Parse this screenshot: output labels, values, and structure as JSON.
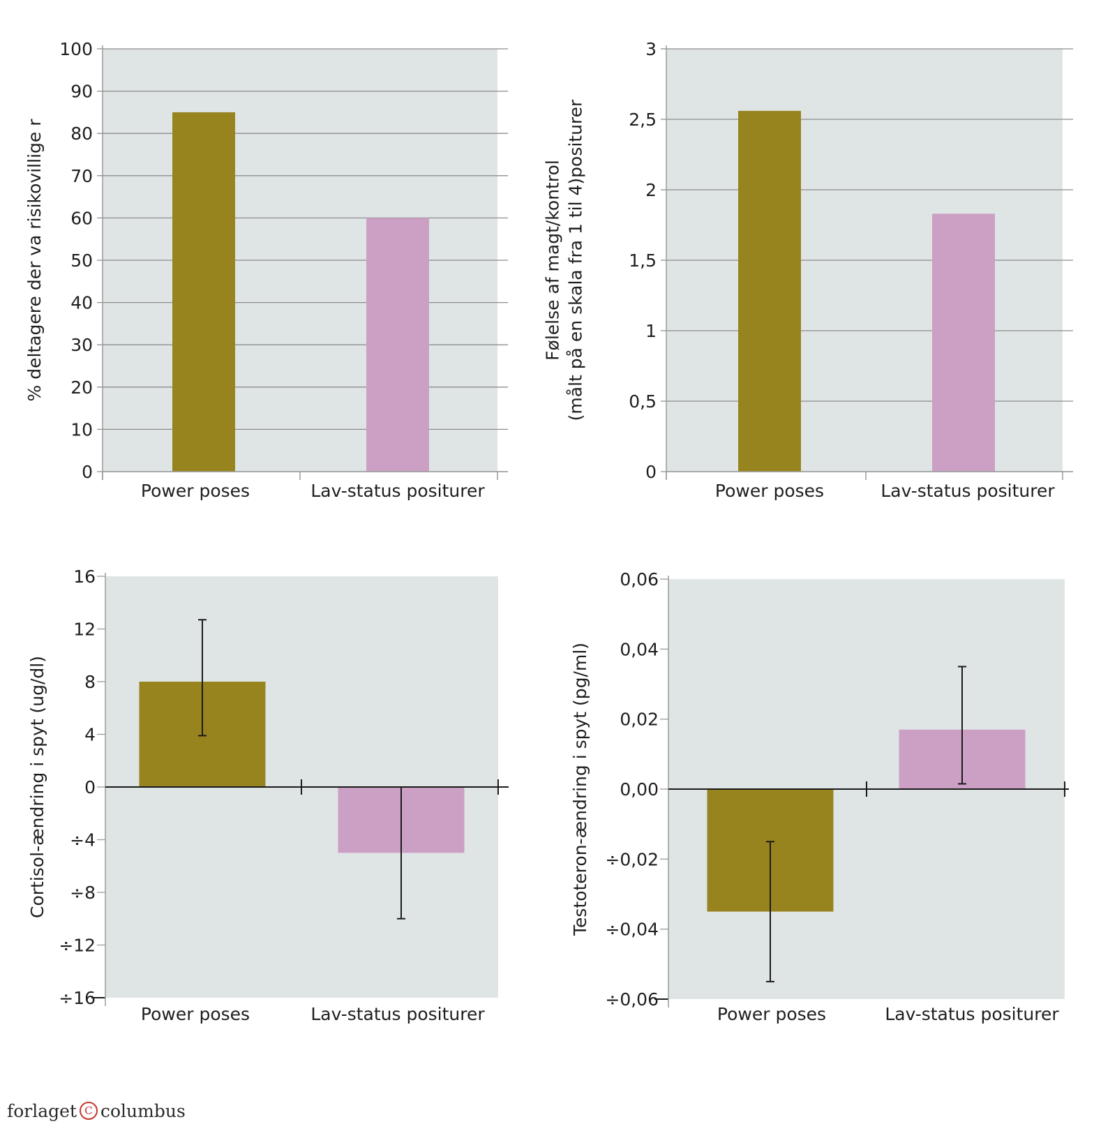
{
  "colors": {
    "plot_bg": "#dfe5e5",
    "grid": "#8c8c8c",
    "axis": "#9a9a9a",
    "zero_line": "#1a1a1a",
    "power": "#98841f",
    "low": "#cca0c4",
    "error_bar": "#1a1a1a"
  },
  "chart_data": [
    {
      "type": "bar",
      "categories": [
        "Power poses",
        "Lav-status positurer"
      ],
      "values": [
        85,
        60
      ],
      "ylabel": [
        "% deltagere der va risikovillige r"
      ],
      "ylim": [
        0,
        100
      ],
      "yticks": [
        0,
        10,
        20,
        30,
        40,
        50,
        60,
        70,
        80,
        90,
        100
      ],
      "ytick_labels": [
        "0",
        "10",
        "20",
        "30",
        "40",
        "50",
        "60",
        "70",
        "80",
        "90",
        "100"
      ],
      "grid": true
    },
    {
      "type": "bar",
      "categories": [
        "Power poses",
        "Lav-status positurer"
      ],
      "values": [
        2.56,
        1.83
      ],
      "ylabel": [
        "Følelse af magt/kontrol",
        "(målt på en skala fra 1 til 4)positurer"
      ],
      "ylim": [
        0,
        3
      ],
      "yticks": [
        0,
        0.5,
        1,
        1.5,
        2,
        2.5,
        3
      ],
      "ytick_labels": [
        "0",
        "0,5",
        "1",
        "1,5",
        "2",
        "2,5",
        "3"
      ],
      "grid": true
    },
    {
      "type": "bar",
      "categories": [
        "Power poses",
        "Lav-status positurer"
      ],
      "values": [
        8,
        -5
      ],
      "error_low": [
        3.9,
        -10
      ],
      "error_high": [
        12.7,
        0
      ],
      "ylabel": [
        "Cortisol-ændring i spyt (ug/dl)"
      ],
      "ylim": [
        -16,
        16
      ],
      "yticks": [
        -16,
        -12,
        -8,
        -4,
        0,
        4,
        8,
        12,
        16
      ],
      "ytick_labels": [
        "÷16",
        "÷12",
        "÷8",
        "÷4",
        "0",
        "4",
        "8",
        "12",
        "16"
      ],
      "grid": false
    },
    {
      "type": "bar",
      "categories": [
        "Power poses",
        "Lav-status positurer"
      ],
      "values": [
        -0.035,
        0.017
      ],
      "error_low": [
        -0.055,
        0.0015
      ],
      "error_high": [
        -0.015,
        0.035
      ],
      "ylabel": [
        "Testoteron-ændring i spyt (pg/ml)"
      ],
      "ylim": [
        -0.06,
        0.06
      ],
      "yticks": [
        -0.06,
        -0.04,
        -0.02,
        0,
        0.02,
        0.04,
        0.06
      ],
      "ytick_labels": [
        "÷0,06",
        "÷0,04",
        "÷0,02",
        "0,00",
        "0,02",
        "0,04",
        "0,06"
      ],
      "grid": false
    }
  ],
  "footer": {
    "left": "forlaget",
    "mark": "C",
    "right": "columbus"
  }
}
